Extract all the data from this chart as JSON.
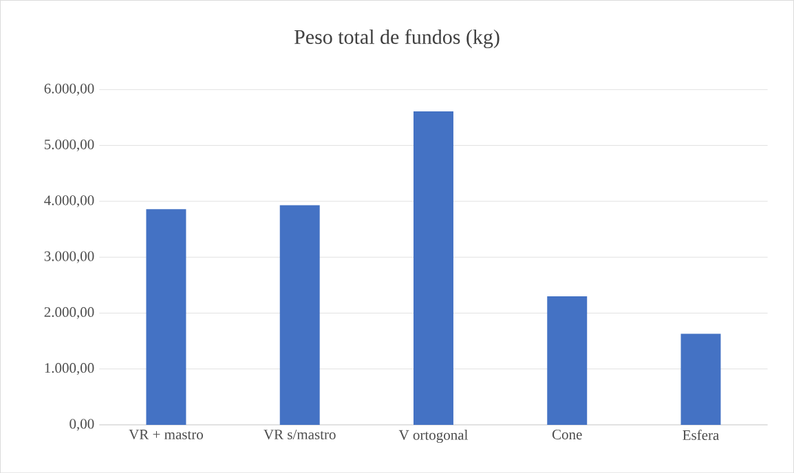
{
  "chart_data": {
    "type": "bar",
    "title": "Peso total de fundos (kg)",
    "categories": [
      "VR + mastro",
      "VR s/mastro",
      "V ortogonal",
      "Cone",
      "Esfera"
    ],
    "values": [
      3860,
      3930,
      5610,
      2300,
      1630
    ],
    "color": "#4472c4",
    "ylim": [
      0,
      6000
    ],
    "yticks": [
      {
        "value": 0,
        "label": "0,00"
      },
      {
        "value": 1000,
        "label": "1.000,00"
      },
      {
        "value": 2000,
        "label": "2.000,00"
      },
      {
        "value": 3000,
        "label": "3.000,00"
      },
      {
        "value": 4000,
        "label": "4.000,00"
      },
      {
        "value": 5000,
        "label": "5.000,00"
      },
      {
        "value": 6000,
        "label": "6.000,00"
      }
    ],
    "grid": "y"
  }
}
